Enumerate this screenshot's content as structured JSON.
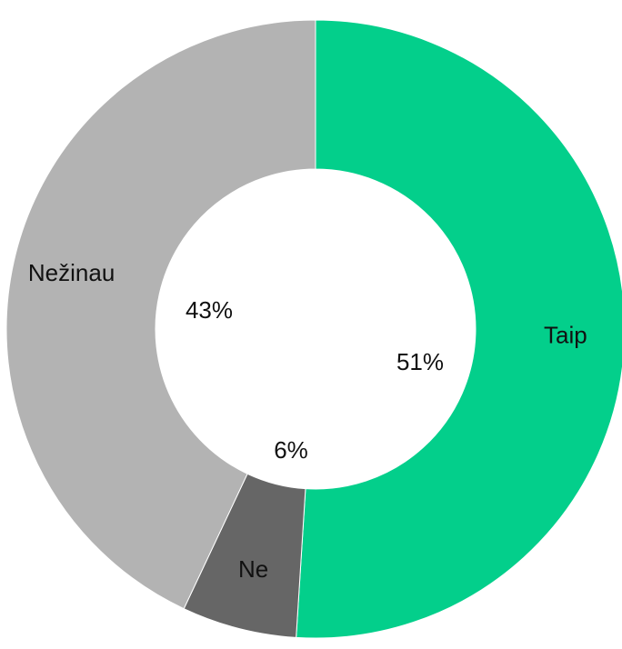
{
  "chart_data": {
    "type": "donut",
    "categories": [
      "Taip",
      "Ne",
      "Nežinau"
    ],
    "values": [
      51,
      6,
      43
    ],
    "value_labels": [
      "51%",
      "6%",
      "43%"
    ],
    "colors": [
      "#03cf8b",
      "#666666",
      "#b3b3b3"
    ]
  }
}
